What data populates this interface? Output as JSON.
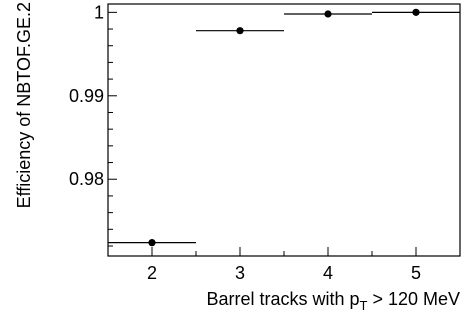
{
  "chart_data": {
    "type": "scatter",
    "title": "",
    "xlabel": "Barrel tracks with p",
    "xlabel_sub": "T",
    "xlabel_rest": " > 120 MeV",
    "ylabel": "Efficiency of NBTOF.GE.2",
    "xlim": [
      1.5,
      5.5
    ],
    "ylim": [
      0.9708,
      1.001
    ],
    "x_ticks": [
      2,
      3,
      4,
      5
    ],
    "x_tick_labels": [
      "2",
      "3",
      "4",
      "5"
    ],
    "y_ticks": [
      0.98,
      0.99,
      1.0
    ],
    "y_tick_labels": [
      "0.98",
      "0.99",
      "1"
    ],
    "grid": false,
    "series": [
      {
        "points": [
          {
            "x": 2,
            "xerr": 0.5,
            "y": 0.9724
          },
          {
            "x": 3,
            "xerr": 0.5,
            "y": 0.9978
          },
          {
            "x": 4,
            "xerr": 0.5,
            "y": 0.9998
          },
          {
            "x": 5,
            "xerr": 0.5,
            "y": 1.0
          }
        ]
      }
    ],
    "colors": {
      "marker": "#000000",
      "axis": "#000000"
    }
  }
}
